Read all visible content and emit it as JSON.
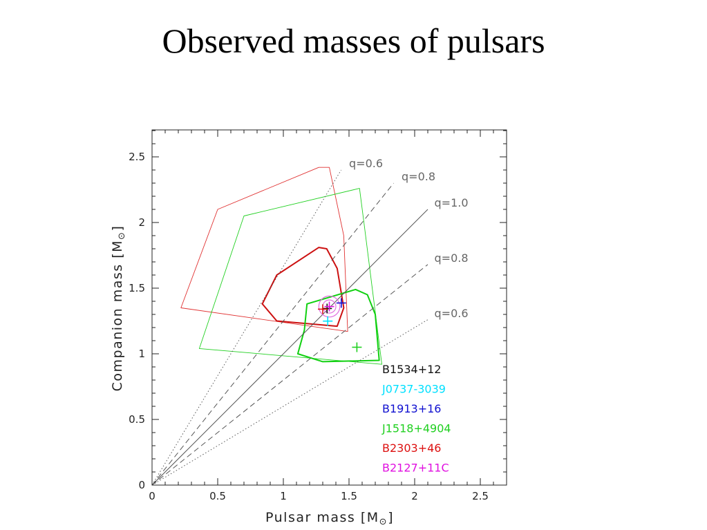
{
  "slide": {
    "title": "Observed masses of pulsars"
  },
  "chart_data": {
    "type": "scatter",
    "xlabel_main": "Pulsar mass [M",
    "xlabel_sub": "⊙",
    "xlabel_end": "]",
    "ylabel_main": "Companion mass [M",
    "ylabel_sub": "⊙",
    "ylabel_end": "]",
    "xlim": [
      0,
      2.7
    ],
    "ylim": [
      0,
      2.7
    ],
    "x_ticks": [
      {
        "value": 0,
        "label": "0"
      },
      {
        "value": 0.5,
        "label": "0.5"
      },
      {
        "value": 1,
        "label": "1"
      },
      {
        "value": 1.5,
        "label": "1.5"
      },
      {
        "value": 2,
        "label": "2"
      },
      {
        "value": 2.5,
        "label": "2.5"
      }
    ],
    "y_ticks": [
      {
        "value": 0,
        "label": "0"
      },
      {
        "value": 0.5,
        "label": "0.5"
      },
      {
        "value": 1,
        "label": "1"
      },
      {
        "value": 1.5,
        "label": "1.5"
      },
      {
        "value": 2,
        "label": "2"
      },
      {
        "value": 2.5,
        "label": "2.5"
      }
    ],
    "ratio_lines": [
      {
        "label": "q=0.6",
        "slope": 1.6667,
        "x_end": 1.44,
        "dash": "dotted",
        "label_x": 1.5,
        "label_y": 2.42
      },
      {
        "label": "q=0.8",
        "slope": 1.25,
        "x_end": 1.84,
        "dash": "dashed",
        "label_x": 1.9,
        "label_y": 2.32
      },
      {
        "label": "q=1.0",
        "slope": 1.0,
        "x_end": 2.1,
        "dash": "solid",
        "label_x": 2.15,
        "label_y": 2.12
      },
      {
        "label": "q=0.8",
        "slope": 0.8,
        "x_end": 2.1,
        "dash": "dashed",
        "label_x": 2.15,
        "label_y": 1.7
      },
      {
        "label": "q=0.6",
        "slope": 0.6,
        "x_end": 2.1,
        "dash": "dotted",
        "label_x": 2.15,
        "label_y": 1.28
      }
    ],
    "regions": [
      {
        "color": "#e03030",
        "width": 0.9,
        "points": [
          [
            1.27,
            2.42
          ],
          [
            0.5,
            2.1
          ],
          [
            0.22,
            1.35
          ],
          [
            1.49,
            1.17
          ],
          [
            1.46,
            1.9
          ],
          [
            1.35,
            2.42
          ]
        ]
      },
      {
        "color": "#20d020",
        "width": 0.9,
        "points": [
          [
            1.58,
            2.26
          ],
          [
            0.7,
            2.05
          ],
          [
            0.36,
            1.04
          ],
          [
            1.75,
            0.92
          ],
          [
            1.62,
            1.95
          ],
          [
            1.58,
            2.26
          ]
        ]
      },
      {
        "color": "#cc1010",
        "width": 2.0,
        "points": [
          [
            1.27,
            1.81
          ],
          [
            0.95,
            1.6
          ],
          [
            0.84,
            1.38
          ],
          [
            0.95,
            1.25
          ],
          [
            1.41,
            1.21
          ],
          [
            1.46,
            1.35
          ],
          [
            1.41,
            1.65
          ],
          [
            1.33,
            1.8
          ]
        ]
      },
      {
        "color": "#10d010",
        "width": 2.0,
        "points": [
          [
            1.55,
            1.49
          ],
          [
            1.18,
            1.38
          ],
          [
            1.16,
            1.18
          ],
          [
            1.11,
            1.0
          ],
          [
            1.3,
            0.94
          ],
          [
            1.73,
            0.95
          ],
          [
            1.7,
            1.3
          ],
          [
            1.64,
            1.45
          ]
        ]
      }
    ],
    "series": [
      {
        "name": "B1534+12",
        "color": "#111111",
        "points": [
          [
            1.333,
            1.345
          ]
        ]
      },
      {
        "name": "J0737-3039",
        "color": "#00e0ff",
        "points": [
          [
            1.338,
            1.249
          ]
        ]
      },
      {
        "name": "B1913+16",
        "color": "#1010d0",
        "points": [
          [
            1.441,
            1.387
          ]
        ]
      },
      {
        "name": "J1518+4904",
        "color": "#20d020",
        "points": [
          [
            1.56,
            1.05
          ]
        ]
      },
      {
        "name": "B2303+46",
        "color": "#dd1010",
        "points": [
          [
            1.3,
            1.34
          ]
        ]
      },
      {
        "name": "B2127+11C",
        "color": "#e010e0",
        "points": [
          [
            1.35,
            1.36
          ]
        ]
      }
    ],
    "b2127_circles": [
      {
        "x": 1.35,
        "y": 1.36,
        "r": 0.05
      },
      {
        "x": 1.35,
        "y": 1.36,
        "r": 0.08
      }
    ],
    "legend_position": "bottom-right"
  }
}
